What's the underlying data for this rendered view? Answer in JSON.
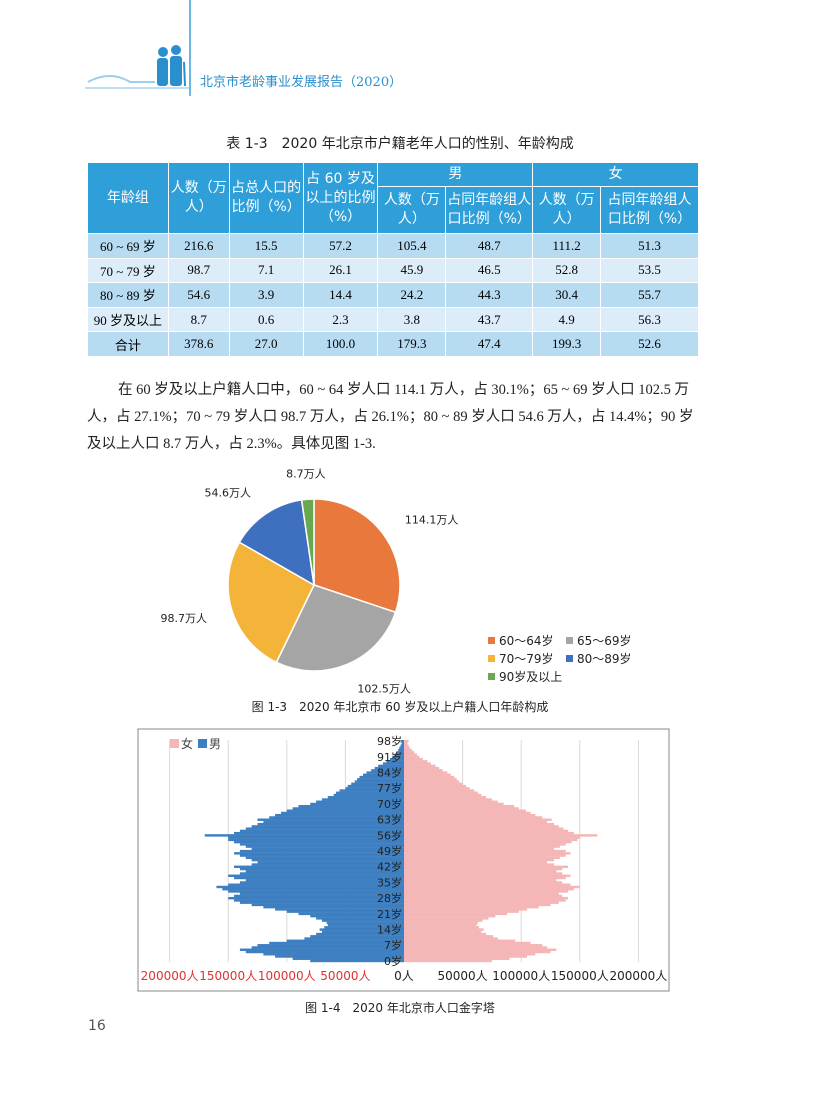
{
  "header": {
    "title": "北京市老龄事业发展报告（2020）"
  },
  "table": {
    "title": "表 1-3　2020 年北京市户籍老年人口的性别、年龄构成",
    "header_top": [
      "年龄组",
      "人数（万人）",
      "占总人口的比例（%）",
      "占 60 岁及以上的比例（%）",
      "男",
      "女"
    ],
    "header_sub": [
      "人数（万人）",
      "占同年龄组人口比例（%）",
      "人数（万人）",
      "占同年龄组人口比例（%）"
    ],
    "rows": [
      [
        "60 ~ 69 岁",
        "216.6",
        "15.5",
        "57.2",
        "105.4",
        "48.7",
        "111.2",
        "51.3"
      ],
      [
        "70 ~ 79 岁",
        "98.7",
        "7.1",
        "26.1",
        "45.9",
        "46.5",
        "52.8",
        "53.5"
      ],
      [
        "80 ~ 89 岁",
        "54.6",
        "3.9",
        "14.4",
        "24.2",
        "44.3",
        "30.4",
        "55.7"
      ],
      [
        "90 岁及以上",
        "8.7",
        "0.6",
        "2.3",
        "3.8",
        "43.7",
        "4.9",
        "56.3"
      ],
      [
        "合计",
        "378.6",
        "27.0",
        "100.0",
        "179.3",
        "47.4",
        "199.3",
        "52.6"
      ]
    ]
  },
  "paragraph": "在 60 岁及以上户籍人口中，60 ~ 64 岁人口 114.1 万人，占 30.1%；65 ~ 69 岁人口 102.5 万人，占 27.1%；70 ~ 79 岁人口 98.7 万人，占 26.1%；80 ~ 89 岁人口 54.6 万人，占 14.4%；90 岁及以上人口 8.7 万人，占 2.3%。具体见图 1-3.",
  "chart_data": [
    {
      "type": "pie",
      "caption": "图 1-3　2020 年北京市 60 岁及以上户籍人口年龄构成",
      "categories": [
        "60～64岁",
        "65～69岁",
        "70～79岁",
        "80～89岁",
        "90岁及以上"
      ],
      "values": [
        114.1,
        102.5,
        98.7,
        54.6,
        8.7
      ],
      "value_labels": [
        "114.1万人",
        "102.5万人",
        "98.7万人",
        "54.6万人",
        "8.7万人"
      ],
      "colors": [
        "#e8783c",
        "#a5a5a5",
        "#f4b43a",
        "#3f6fbf",
        "#6aa84f"
      ],
      "legend": "bottom-right"
    },
    {
      "type": "pyramid",
      "caption": "图 1-4　2020 年北京市人口金字塔",
      "categories": [
        "0岁",
        null,
        null,
        null,
        null,
        null,
        null,
        "7岁",
        null,
        null,
        null,
        null,
        null,
        null,
        "14岁",
        null,
        null,
        null,
        null,
        null,
        null,
        "21岁",
        null,
        null,
        null,
        null,
        null,
        null,
        "28岁",
        null,
        null,
        null,
        null,
        null,
        null,
        "35岁",
        null,
        null,
        null,
        null,
        null,
        null,
        "42岁",
        null,
        null,
        null,
        null,
        null,
        null,
        "49岁",
        null,
        null,
        null,
        null,
        null,
        null,
        "56岁",
        null,
        null,
        null,
        null,
        null,
        null,
        "63岁",
        null,
        null,
        null,
        null,
        null,
        null,
        "70岁",
        null,
        null,
        null,
        null,
        null,
        null,
        "77岁",
        null,
        null,
        null,
        null,
        null,
        null,
        "84岁",
        null,
        null,
        null,
        null,
        null,
        null,
        "91岁",
        null,
        null,
        null,
        null,
        null,
        null,
        "98岁"
      ],
      "series": [
        {
          "name": "女",
          "color": "#f4b6b6",
          "side": "right",
          "values": [
            75000,
            90000,
            105000,
            112000,
            125000,
            130000,
            122000,
            118000,
            108000,
            95000,
            80000,
            76000,
            70000,
            66000,
            68000,
            64000,
            62000,
            63000,
            67000,
            72000,
            78000,
            88000,
            98000,
            105000,
            115000,
            125000,
            132000,
            138000,
            140000,
            135000,
            132000,
            140000,
            145000,
            150000,
            142000,
            135000,
            130000,
            138000,
            142000,
            135000,
            130000,
            135000,
            140000,
            128000,
            122000,
            128000,
            133000,
            138000,
            142000,
            138000,
            128000,
            133000,
            138000,
            143000,
            148000,
            150000,
            165000,
            145000,
            140000,
            136000,
            132000,
            128000,
            122000,
            126000,
            118000,
            112000,
            108000,
            104000,
            98000,
            94000,
            85000,
            80000,
            75000,
            70000,
            66000,
            63000,
            60000,
            56000,
            53000,
            50000,
            47000,
            45000,
            43000,
            40000,
            37000,
            33000,
            30000,
            27000,
            23000,
            20000,
            16000,
            13000,
            11000,
            9000,
            7000,
            5000,
            4000,
            3000,
            4000
          ]
        },
        {
          "name": "男",
          "color": "#3d7fc1",
          "side": "left",
          "values": [
            80000,
            95000,
            110000,
            120000,
            135000,
            140000,
            130000,
            125000,
            115000,
            100000,
            85000,
            80000,
            75000,
            70000,
            72000,
            68000,
            65000,
            66000,
            70000,
            75000,
            80000,
            90000,
            100000,
            110000,
            120000,
            130000,
            140000,
            145000,
            150000,
            145000,
            140000,
            150000,
            155000,
            160000,
            150000,
            140000,
            135000,
            145000,
            150000,
            140000,
            135000,
            140000,
            145000,
            130000,
            125000,
            130000,
            135000,
            140000,
            145000,
            140000,
            130000,
            135000,
            140000,
            145000,
            150000,
            150000,
            170000,
            145000,
            140000,
            135000,
            130000,
            125000,
            120000,
            125000,
            115000,
            110000,
            105000,
            100000,
            95000,
            90000,
            80000,
            75000,
            70000,
            65000,
            60000,
            58000,
            55000,
            50000,
            48000,
            45000,
            42000,
            40000,
            38000,
            35000,
            32000,
            28000,
            25000,
            22000,
            18000,
            15000,
            12000,
            10000,
            8000,
            6000,
            5000,
            4000,
            3000,
            2000,
            3000
          ]
        }
      ],
      "xlim": [
        -215000,
        215000
      ],
      "xticks": [
        {
          "value": -200000,
          "label": "200000人"
        },
        {
          "value": -150000,
          "label": "150000人"
        },
        {
          "value": -100000,
          "label": "100000人"
        },
        {
          "value": -50000,
          "label": "50000人"
        },
        {
          "value": 0,
          "label": "0人"
        },
        {
          "value": 50000,
          "label": "50000人"
        },
        {
          "value": 100000,
          "label": "100000人"
        },
        {
          "value": 150000,
          "label": "150000人"
        },
        {
          "value": 200000,
          "label": "200000人"
        }
      ],
      "negative_tick_color": "#e03030",
      "grid": true,
      "legend": "top-left"
    }
  ],
  "page_number": "16"
}
